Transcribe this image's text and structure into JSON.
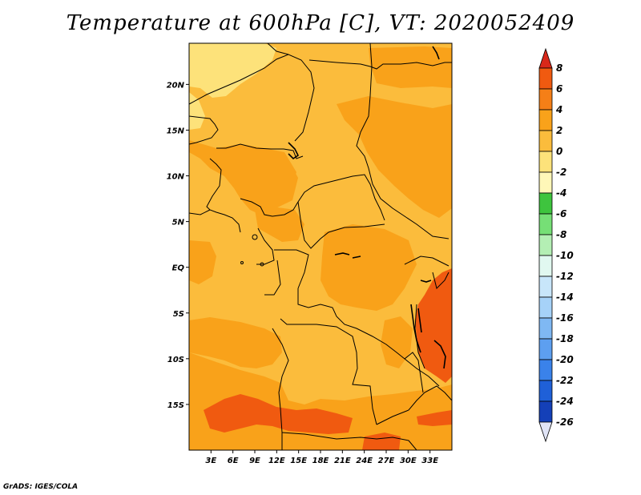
{
  "title": "Temperature at 600hPa [C], VT: 2020052409",
  "credit": "GrADS: IGES/COLA",
  "map": {
    "lon_range": [
      0,
      36
    ],
    "lat_range": [
      -20,
      24.5
    ],
    "lat_ticks": [
      {
        "label": "20N",
        "lat": 20
      },
      {
        "label": "15N",
        "lat": 15
      },
      {
        "label": "10N",
        "lat": 10
      },
      {
        "label": "5N",
        "lat": 5
      },
      {
        "label": "EQ",
        "lat": 0
      },
      {
        "label": "5S",
        "lat": -5
      },
      {
        "label": "10S",
        "lat": -10
      },
      {
        "label": "15S",
        "lat": -15
      }
    ],
    "lon_ticks": [
      {
        "label": "3E",
        "lon": 3
      },
      {
        "label": "6E",
        "lon": 6
      },
      {
        "label": "9E",
        "lon": 9
      },
      {
        "label": "12E",
        "lon": 12
      },
      {
        "label": "15E",
        "lon": 15
      },
      {
        "label": "18E",
        "lon": 18
      },
      {
        "label": "21E",
        "lon": 21
      },
      {
        "label": "24E",
        "lon": 24
      },
      {
        "label": "27E",
        "lon": 27
      },
      {
        "label": "30E",
        "lon": 30
      },
      {
        "label": "33E",
        "lon": 33
      }
    ]
  },
  "colorbar": {
    "labels": [
      "8",
      "6",
      "4",
      "2",
      "0",
      "-2",
      "-4",
      "-6",
      "-8",
      "-10",
      "-12",
      "-14",
      "-16",
      "-18",
      "-20",
      "-22",
      "-24",
      "-26"
    ],
    "colors": [
      "#e03010",
      "#f05a10",
      "#f57f17",
      "#f9a21a",
      "#fbbc3c",
      "#fde27a",
      "#fff7b8",
      "#3ec43e",
      "#76df76",
      "#b4efb4",
      "#e1f8f0",
      "#c8e6fa",
      "#a6d2f8",
      "#7fb8f3",
      "#5d9ff0",
      "#3a82ea",
      "#1f60d8",
      "#1440b8",
      "#0a1e80"
    ],
    "top_color": "#d8281a",
    "bottom_color": "#e0e4f6"
  }
}
